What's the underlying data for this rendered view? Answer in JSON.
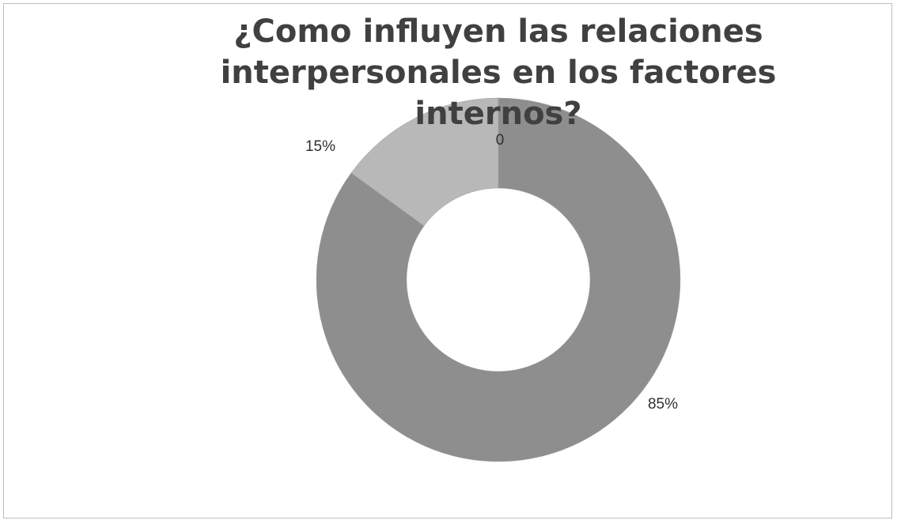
{
  "chart_data": {
    "type": "donut",
    "title": "¿Como influyen las relaciones interpersonales en los factores internos?",
    "categories": [
      null,
      null,
      null
    ],
    "values": [
      85,
      15,
      0
    ],
    "value_labels": [
      "85%",
      "15%",
      "0"
    ],
    "colors": [
      "#8e8e8e",
      "#b8b8b8",
      "#d0d0d0"
    ]
  }
}
